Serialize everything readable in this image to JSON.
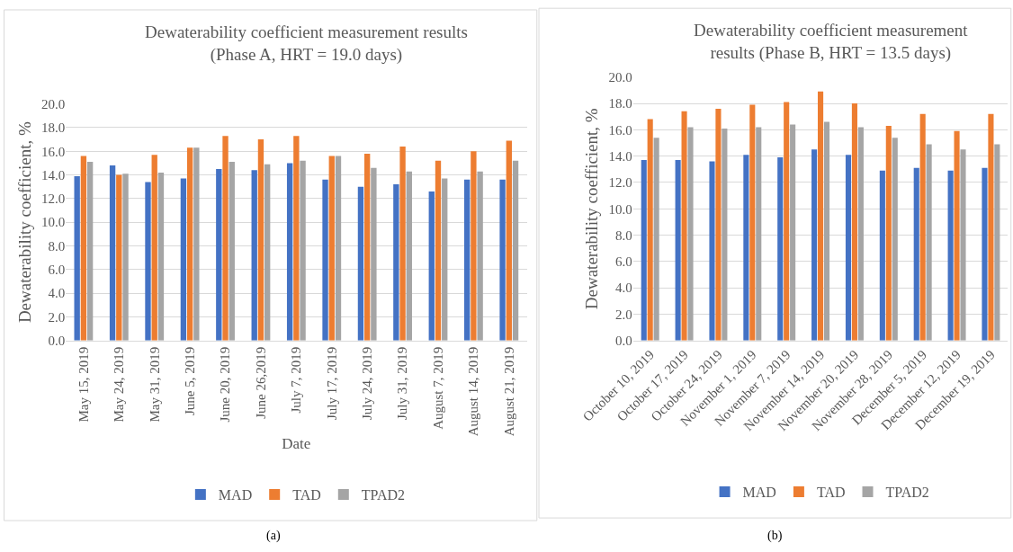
{
  "chart_data": [
    {
      "type": "bar",
      "title": "Dewaterability coefficient measurement results",
      "subtitle": "(Phase A, HRT = 19.0 days)",
      "xlabel": "Date",
      "ylabel": "Dewaterability coefficient, %",
      "categories": [
        "May 15, 2019",
        "May 24, 2019",
        "May 31, 2019",
        "June 5, 2019",
        "June 20, 2019",
        "June 26,2019",
        "July 7, 2019",
        "July 17, 2019",
        "July 24, 2019",
        "July 31, 2019",
        "August 7, 2019",
        "August 14, 2019",
        "August 21, 2019"
      ],
      "series": [
        {
          "name": "MAD",
          "color": "#4472c4",
          "values": [
            13.9,
            14.8,
            13.4,
            13.7,
            14.5,
            14.4,
            15.0,
            13.6,
            13.0,
            13.2,
            12.6,
            13.6,
            13.6
          ]
        },
        {
          "name": "TAD",
          "color": "#ed7d31",
          "values": [
            15.6,
            14.0,
            15.7,
            16.3,
            17.3,
            17.0,
            17.3,
            15.6,
            15.8,
            16.4,
            15.2,
            16.0,
            16.9
          ]
        },
        {
          "name": "TPAD2",
          "color": "#a5a5a5",
          "values": [
            15.1,
            14.1,
            14.2,
            16.3,
            15.1,
            14.9,
            15.2,
            15.6,
            14.6,
            14.3,
            13.7,
            14.3,
            15.2
          ]
        }
      ],
      "ylim": [
        0,
        20
      ],
      "yticks": [
        {
          "value": 0,
          "label": "0.0"
        },
        {
          "value": 2,
          "label": "2.0"
        },
        {
          "value": 4,
          "label": "4.0"
        },
        {
          "value": 6,
          "label": "6.0"
        },
        {
          "value": 8,
          "label": "8.0"
        },
        {
          "value": 10,
          "label": "10.0"
        },
        {
          "value": 12,
          "label": "12.0"
        },
        {
          "value": 14,
          "label": "14.0"
        },
        {
          "value": 16,
          "label": "16.0"
        },
        {
          "value": 18,
          "label": "18.0"
        },
        {
          "value": 20,
          "label": "20.0"
        }
      ],
      "grid": "y",
      "legend": "bottom",
      "annotations": [
        "(a)"
      ]
    },
    {
      "type": "bar",
      "title": "Dewaterability coefficient measurement",
      "subtitle": "results (Phase B, HRT = 13.5 days)",
      "ylabel": "Dewaterability coefficient, %",
      "categories": [
        "October 10, 2019",
        "October 17, 2019",
        "October 24, 2019",
        "November 1, 2019",
        "November 7, 2019",
        "November 14, 2019",
        "November 20, 2019",
        "November 28, 2019",
        "December 5, 2019",
        "December 12, 2019",
        "December 19, 2019"
      ],
      "series": [
        {
          "name": "MAD",
          "color": "#4472c4",
          "values": [
            13.7,
            13.7,
            13.6,
            14.1,
            13.9,
            14.5,
            14.1,
            12.9,
            13.1,
            12.9,
            13.1
          ]
        },
        {
          "name": "TAD",
          "color": "#ed7d31",
          "values": [
            16.8,
            17.4,
            17.6,
            17.9,
            18.1,
            18.9,
            18.0,
            16.3,
            17.2,
            15.9,
            17.2
          ]
        },
        {
          "name": "TPAD2",
          "color": "#a5a5a5",
          "values": [
            15.4,
            16.2,
            16.1,
            16.2,
            16.4,
            16.6,
            16.2,
            15.4,
            14.9,
            14.5,
            14.9
          ]
        }
      ],
      "ylim": [
        0,
        20
      ],
      "yticks": [
        {
          "value": 0,
          "label": "0.0"
        },
        {
          "value": 2,
          "label": "2.0"
        },
        {
          "value": 4,
          "label": "4.0"
        },
        {
          "value": 6,
          "label": "6.0"
        },
        {
          "value": 8,
          "label": "8.0"
        },
        {
          "value": 10,
          "label": "10.0"
        },
        {
          "value": 12,
          "label": "12.0"
        },
        {
          "value": 14,
          "label": "14.0"
        },
        {
          "value": 16,
          "label": "16.0"
        },
        {
          "value": 18,
          "label": "18.0"
        },
        {
          "value": 20,
          "label": "20.0"
        }
      ],
      "grid": "y",
      "legend": "bottom",
      "annotations": [
        "(b)"
      ]
    }
  ]
}
